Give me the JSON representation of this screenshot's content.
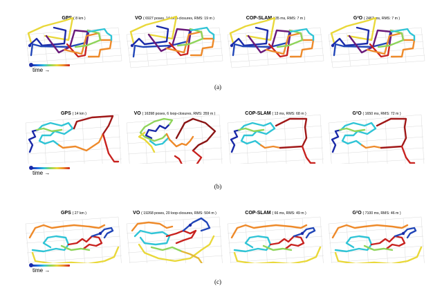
{
  "rows": [
    {
      "caption": "(a)",
      "legend": "time →",
      "panels": [
        {
          "name": "GPS",
          "details": "( 8 km )"
        },
        {
          "name": "VO",
          "details": "( 6927 poses, 14 loop-closures, RMS: 19 m )"
        },
        {
          "name": "COP-SLAM",
          "details": "( 35 ms, RMS: 7 m )"
        },
        {
          "name": "G²O",
          "details": "( 2467 ms, RMS: 7 m )"
        }
      ]
    },
    {
      "caption": "(b)",
      "legend": "time →",
      "panels": [
        {
          "name": "GPS",
          "details": "( 14 km )"
        },
        {
          "name": "VO",
          "details": "( 16398 poses, 6 loop-closures, RMS: 359 m )"
        },
        {
          "name": "COP-SLAM",
          "details": "( 13 ms, RMS: 68 m )"
        },
        {
          "name": "G²O",
          "details": "( 1650 ms, RMS: 72 m )"
        }
      ]
    },
    {
      "caption": "(c)",
      "legend": "time →",
      "panels": [
        {
          "name": "GPS",
          "details": "( 27 km )"
        },
        {
          "name": "VO",
          "details": "( 19268 poses, 20 loop-closures, RMS: 504 m )"
        },
        {
          "name": "COP-SLAM",
          "details": "( 66 ms, RMS: 49 m )"
        },
        {
          "name": "G²O",
          "details": "( 7100 ms, RMS: 46 m )"
        }
      ]
    }
  ],
  "colors": {
    "time_start": "#1a2aa8",
    "time_mid": "#2fc4d6",
    "time_late": "#e9d83a",
    "time_end": "#c8221f"
  }
}
